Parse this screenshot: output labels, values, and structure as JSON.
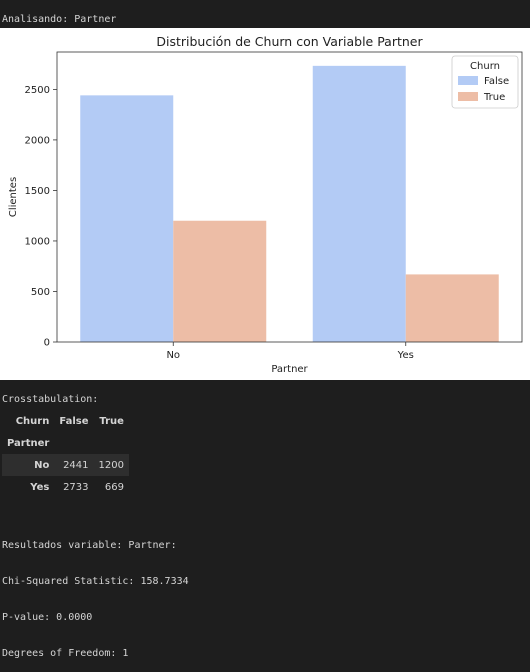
{
  "output": {
    "analyzing_line": "Analisando: Partner",
    "crosstab_title": "Crosstabulation:",
    "results_lines": [
      "Resultados variable: Partner:",
      "Chi-Squared Statistic: 158.7334",
      "P-value: 0.0000",
      "Degrees of Freedom: 1"
    ]
  },
  "crosstab": {
    "column_name": "Churn",
    "columns": [
      "False",
      "True"
    ],
    "index_name": "Partner",
    "rows": [
      {
        "label": "No",
        "values": [
          "2441",
          "1200"
        ]
      },
      {
        "label": "Yes",
        "values": [
          "2733",
          "669"
        ]
      }
    ]
  },
  "chart_data": {
    "type": "bar",
    "title": "Distribución de Churn con Variable Partner",
    "xlabel": "Partner",
    "ylabel": "Clientes",
    "categories": [
      "No",
      "Yes"
    ],
    "series": [
      {
        "name": "False",
        "values": [
          2441,
          2733
        ],
        "color": "#b3cbf5"
      },
      {
        "name": "True",
        "values": [
          1200,
          669
        ],
        "color": "#edbda6"
      }
    ],
    "ylim": [
      0,
      2870
    ],
    "yticks": [
      0,
      500,
      1000,
      1500,
      2000,
      2500
    ],
    "legend_title": "Churn",
    "legend_position": "top-right",
    "grid": false
  }
}
